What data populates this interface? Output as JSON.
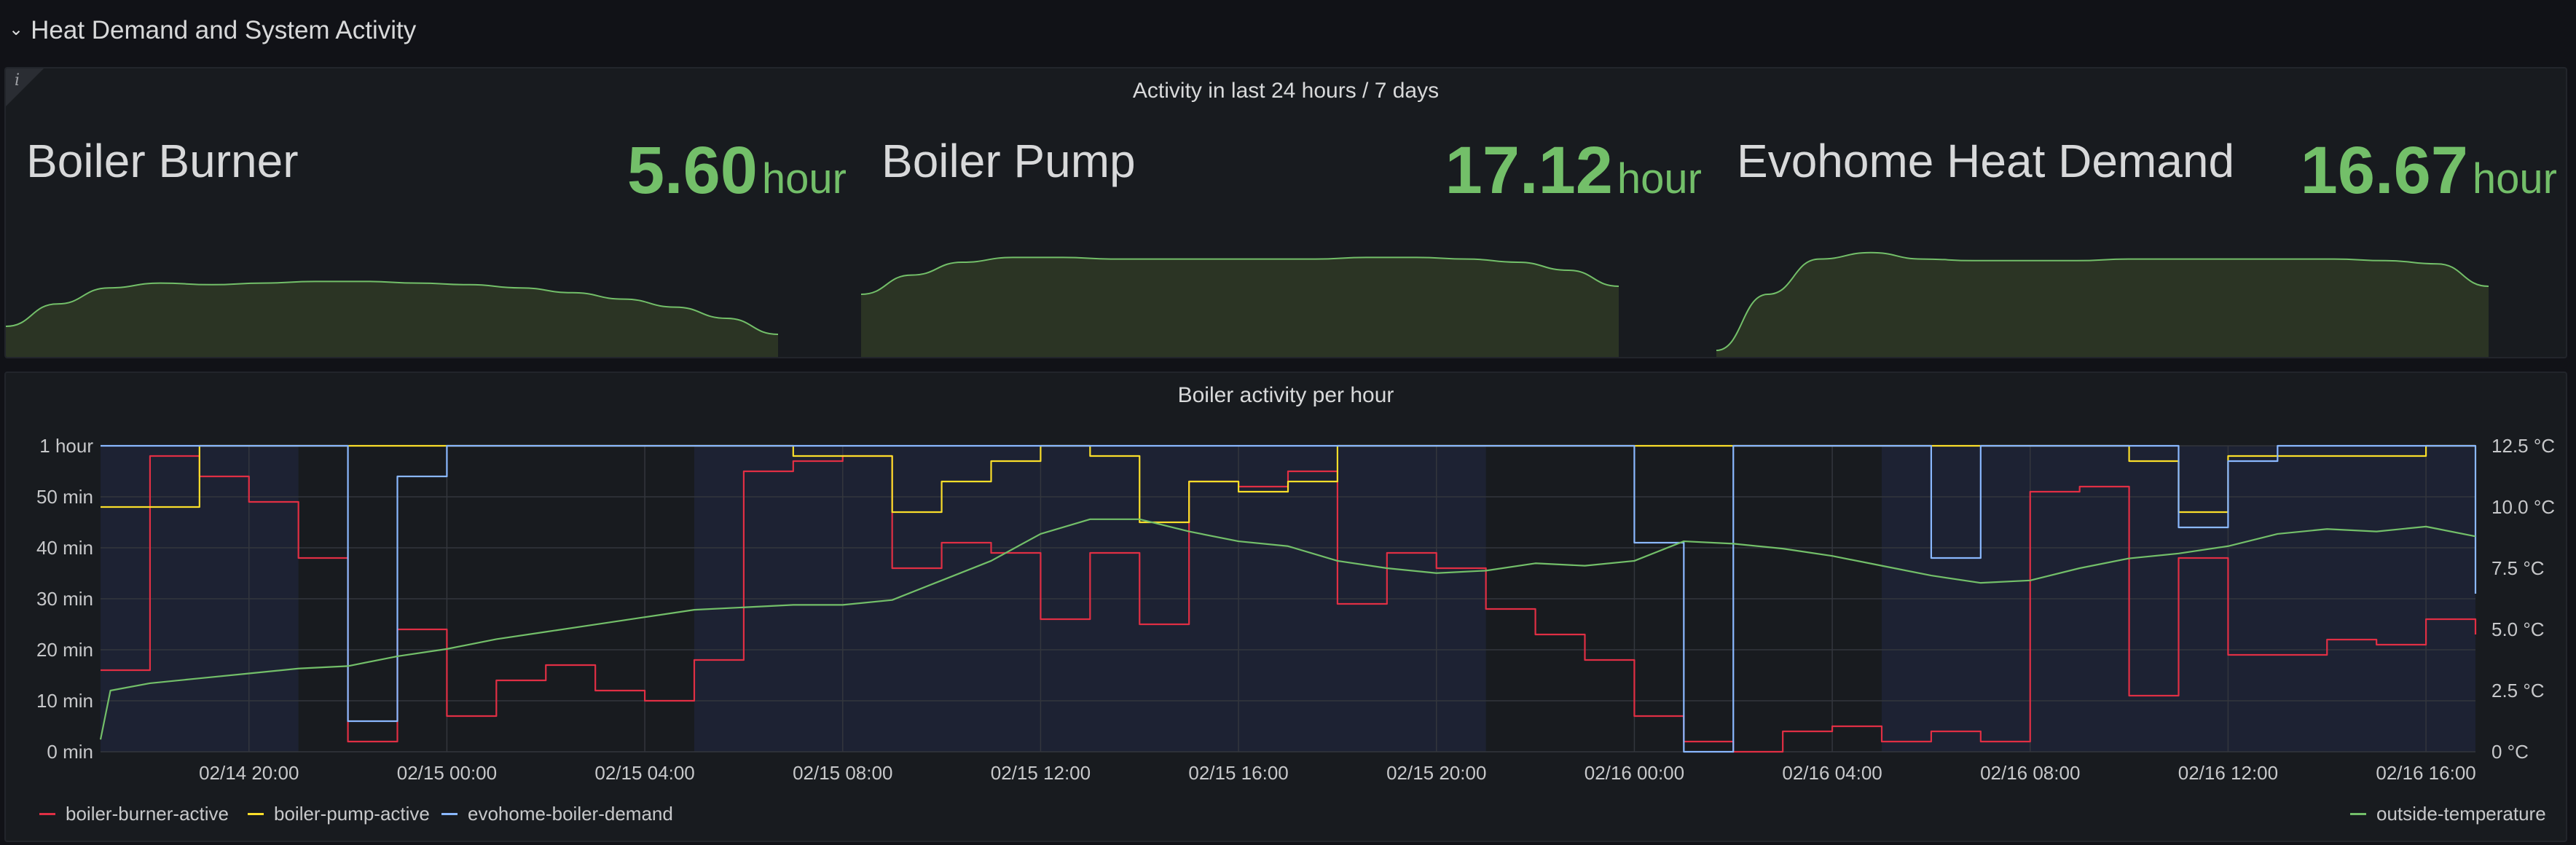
{
  "row": {
    "title": "Heat Demand and System Activity",
    "chevron_icon": "chevron-down-icon"
  },
  "stat_panel": {
    "title": "Activity in last 24 hours / 7 days",
    "info_icon": "info-icon",
    "accent_color": "#73bf69",
    "stats": [
      {
        "name": "Boiler Burner",
        "value": "5.60",
        "unit": "hour",
        "sparkline": [
          0.2,
          0.34,
          0.44,
          0.47,
          0.46,
          0.47,
          0.48,
          0.48,
          0.47,
          0.46,
          0.44,
          0.41,
          0.37,
          0.32,
          0.25,
          0.15
        ]
      },
      {
        "name": "Boiler Pump",
        "value": "17.12",
        "unit": "hour",
        "sparkline": [
          0.4,
          0.52,
          0.6,
          0.63,
          0.63,
          0.62,
          0.62,
          0.62,
          0.62,
          0.62,
          0.63,
          0.63,
          0.62,
          0.6,
          0.55,
          0.45
        ]
      },
      {
        "name": "Evohome Heat Demand",
        "value": "16.67",
        "unit": "hour",
        "sparkline": [
          0.05,
          0.4,
          0.62,
          0.66,
          0.62,
          0.61,
          0.61,
          0.61,
          0.62,
          0.62,
          0.62,
          0.62,
          0.62,
          0.61,
          0.59,
          0.45
        ]
      }
    ]
  },
  "chart_panel": {
    "title": "Boiler activity per hour",
    "chart_data": {
      "type": "line",
      "x_range": [
        "02/14 17:00",
        "02/16 17:00"
      ],
      "x_ticks": [
        "02/14 20:00",
        "02/15 00:00",
        "02/15 04:00",
        "02/15 08:00",
        "02/15 12:00",
        "02/15 16:00",
        "02/15 20:00",
        "02/16 00:00",
        "02/16 04:00",
        "02/16 08:00",
        "02/16 12:00",
        "02/16 16:00"
      ],
      "y_left": {
        "ticks": [
          "0 min",
          "10 min",
          "20 min",
          "30 min",
          "40 min",
          "50 min",
          "1 hour"
        ],
        "range_min": [
          0,
          60
        ]
      },
      "y_right": {
        "ticks": [
          "0 °C",
          "2.5 °C",
          "5.0 °C",
          "7.5 °C",
          "10.0 °C",
          "12.5 °C"
        ],
        "range_c": [
          0,
          12.5
        ]
      },
      "shaded_bands_hours": [
        [
          0,
          4
        ],
        [
          12,
          28
        ],
        [
          36,
          48
        ]
      ],
      "series": [
        {
          "name": "boiler-burner-active",
          "color": "#e02f44",
          "axis": "left",
          "step": true,
          "x_hours": [
            0,
            0.2,
            1,
            2,
            3,
            4,
            5,
            6,
            7,
            8,
            9,
            10,
            11,
            12,
            13,
            14,
            15,
            16,
            17,
            18,
            19,
            20,
            21,
            22,
            23,
            24,
            25,
            26,
            27,
            28,
            29,
            30,
            31,
            32,
            33,
            34,
            35,
            36,
            37,
            38,
            39,
            40,
            41,
            42,
            43,
            44,
            45,
            46,
            47,
            48
          ],
          "values": [
            16,
            16,
            58,
            54,
            49,
            38,
            2,
            24,
            7,
            14,
            17,
            12,
            10,
            18,
            55,
            57,
            58,
            36,
            41,
            39,
            26,
            39,
            25,
            53,
            52,
            55,
            29,
            39,
            36,
            28,
            23,
            18,
            7,
            2,
            0,
            4,
            5,
            2,
            4,
            2,
            51,
            52,
            11,
            38,
            19,
            19,
            22,
            21,
            26,
            23
          ]
        },
        {
          "name": "boiler-pump-active",
          "color": "#fade2a",
          "axis": "left",
          "step": true,
          "x_hours": [
            0,
            0.2,
            1,
            2,
            3,
            4,
            5,
            6,
            7,
            8,
            9,
            10,
            11,
            12,
            13,
            14,
            15,
            16,
            17,
            18,
            19,
            20,
            21,
            22,
            23,
            24,
            25,
            26,
            27,
            28,
            29,
            30,
            31,
            32,
            33,
            34,
            35,
            36,
            37,
            38,
            39,
            40,
            41,
            42,
            43,
            44,
            45,
            46,
            47,
            48
          ],
          "values": [
            48,
            48,
            48,
            60,
            60,
            60,
            60,
            60,
            60,
            60,
            60,
            60,
            60,
            60,
            60,
            58,
            58,
            47,
            53,
            57,
            60,
            58,
            45,
            53,
            51,
            53,
            60,
            60,
            60,
            60,
            60,
            60,
            60,
            60,
            60,
            60,
            60,
            60,
            60,
            60,
            60,
            60,
            57,
            47,
            58,
            58,
            58,
            58,
            60,
            60
          ]
        },
        {
          "name": "evohome-boiler-demand",
          "color": "#8ab8ff",
          "axis": "left",
          "step": true,
          "x_hours": [
            0,
            0.2,
            1,
            2,
            3,
            4,
            5,
            6,
            7,
            8,
            9,
            10,
            11,
            12,
            13,
            14,
            15,
            16,
            17,
            18,
            19,
            20,
            21,
            22,
            23,
            24,
            25,
            26,
            27,
            28,
            29,
            30,
            31,
            32,
            33,
            34,
            35,
            36,
            37,
            38,
            39,
            40,
            41,
            42,
            43,
            44,
            45,
            46,
            47,
            48
          ],
          "values": [
            60,
            60,
            60,
            60,
            60,
            60,
            6,
            54,
            60,
            60,
            60,
            60,
            60,
            60,
            60,
            60,
            60,
            60,
            60,
            60,
            60,
            60,
            60,
            60,
            60,
            60,
            60,
            60,
            60,
            60,
            60,
            60,
            41,
            0,
            60,
            60,
            60,
            60,
            38,
            60,
            60,
            60,
            60,
            44,
            57,
            60,
            60,
            60,
            60,
            31
          ]
        },
        {
          "name": "outside-temperature",
          "color": "#73bf69",
          "axis": "right",
          "step": false,
          "x_hours": [
            0,
            0.2,
            1,
            2,
            3,
            4,
            5,
            6,
            7,
            8,
            9,
            10,
            11,
            12,
            13,
            14,
            15,
            16,
            17,
            18,
            19,
            20,
            21,
            22,
            23,
            24,
            25,
            26,
            27,
            28,
            29,
            30,
            31,
            32,
            33,
            34,
            35,
            36,
            37,
            38,
            39,
            40,
            41,
            42,
            43,
            44,
            45,
            46,
            47,
            48
          ],
          "values": [
            0.5,
            2.5,
            2.8,
            3.0,
            3.2,
            3.4,
            3.5,
            3.9,
            4.2,
            4.6,
            4.9,
            5.2,
            5.5,
            5.8,
            5.9,
            6.0,
            6.0,
            6.2,
            7.0,
            7.8,
            8.9,
            9.5,
            9.5,
            9.0,
            8.6,
            8.4,
            7.8,
            7.5,
            7.3,
            7.4,
            7.7,
            7.6,
            7.8,
            8.6,
            8.5,
            8.3,
            8.0,
            7.6,
            7.2,
            6.9,
            7.0,
            7.5,
            7.9,
            8.1,
            8.4,
            8.9,
            9.1,
            9.0,
            9.2,
            8.8
          ]
        }
      ]
    }
  }
}
